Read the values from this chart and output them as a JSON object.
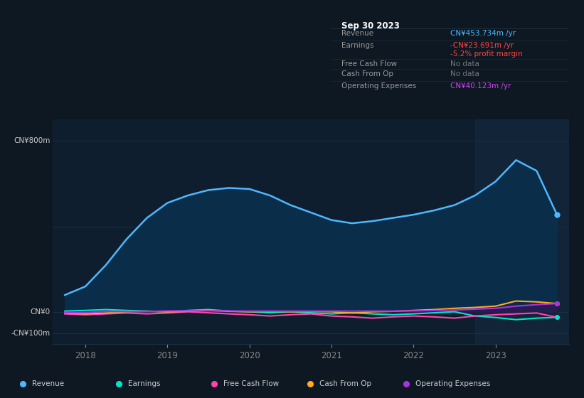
{
  "bg_color": "#0e1822",
  "plot_bg_color": "#0e1e2e",
  "grid_color": "#1a3040",
  "ylim": [
    -150,
    900
  ],
  "ytick_positions": [
    800,
    400,
    0,
    -100
  ],
  "ytick_labels_map": {
    "800": "CN¥800m",
    "0": "CN¥0",
    "-100": "-CN¥100m"
  },
  "xticks": [
    2018,
    2019,
    2020,
    2021,
    2022,
    2023
  ],
  "tooltip": {
    "date": "Sep 30 2023",
    "rows": [
      {
        "label": "Revenue",
        "value": "CN¥453.734m /yr",
        "value_color": "#4db8ff"
      },
      {
        "label": "Earnings",
        "value": "-CN¥23.691m /yr",
        "value_color": "#ff4444"
      },
      {
        "label": "",
        "value": "-5.2% profit margin",
        "value_color": "#ff4444"
      },
      {
        "label": "Free Cash Flow",
        "value": "No data",
        "value_color": "#777777"
      },
      {
        "label": "Cash From Op",
        "value": "No data",
        "value_color": "#777777"
      },
      {
        "label": "Operating Expenses",
        "value": "CN¥40.123m /yr",
        "value_color": "#cc44ee"
      }
    ]
  },
  "legend": [
    {
      "label": "Revenue",
      "color": "#4db8ff"
    },
    {
      "label": "Earnings",
      "color": "#00e5cc"
    },
    {
      "label": "Free Cash Flow",
      "color": "#ff44aa"
    },
    {
      "label": "Cash From Op",
      "color": "#ffaa22"
    },
    {
      "label": "Operating Expenses",
      "color": "#aa33dd"
    }
  ],
  "series": {
    "x": [
      2017.75,
      2018.0,
      2018.25,
      2018.5,
      2018.75,
      2019.0,
      2019.25,
      2019.5,
      2019.75,
      2020.0,
      2020.25,
      2020.5,
      2020.75,
      2021.0,
      2021.25,
      2021.5,
      2021.75,
      2022.0,
      2022.25,
      2022.5,
      2022.75,
      2023.0,
      2023.25,
      2023.5,
      2023.75
    ],
    "revenue": [
      80,
      120,
      220,
      340,
      440,
      510,
      545,
      570,
      580,
      575,
      545,
      500,
      465,
      430,
      415,
      425,
      440,
      455,
      475,
      500,
      545,
      610,
      710,
      660,
      454
    ],
    "earnings": [
      5,
      8,
      12,
      8,
      5,
      2,
      8,
      12,
      5,
      2,
      -3,
      2,
      -3,
      -8,
      -3,
      -8,
      -12,
      -8,
      -3,
      2,
      -18,
      -25,
      -35,
      -28,
      -24
    ],
    "free_cash_flow": [
      -8,
      -12,
      -8,
      -4,
      -8,
      -4,
      2,
      -3,
      -8,
      -12,
      -18,
      -12,
      -8,
      -18,
      -22,
      -28,
      -22,
      -18,
      -22,
      -28,
      -18,
      -12,
      -8,
      -4,
      -24
    ],
    "cash_from_op": [
      -4,
      -8,
      -4,
      2,
      4,
      2,
      4,
      8,
      4,
      2,
      4,
      2,
      4,
      2,
      -4,
      2,
      4,
      8,
      12,
      18,
      22,
      28,
      52,
      48,
      40
    ],
    "operating_expenses": [
      -2,
      -2,
      3,
      3,
      3,
      6,
      6,
      6,
      6,
      5,
      5,
      5,
      5,
      5,
      5,
      5,
      5,
      6,
      8,
      10,
      14,
      18,
      28,
      35,
      40
    ]
  }
}
